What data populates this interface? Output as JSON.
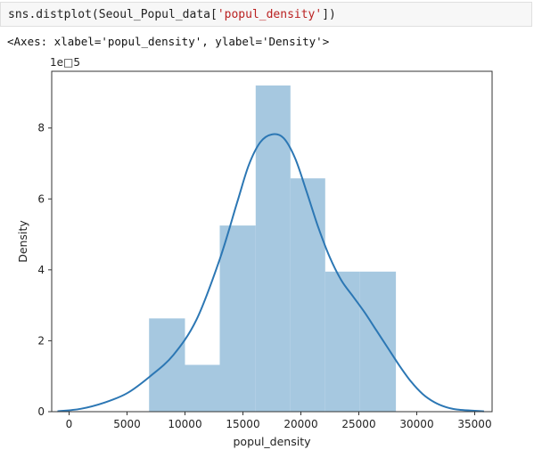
{
  "cell": {
    "code_prefix": "sns.distplot(Seoul_Popul_data[",
    "code_string": "'popul_density'",
    "code_suffix": "])"
  },
  "output": {
    "repr": "<Axes: xlabel='popul_density', ylabel='Density'>"
  },
  "chart_data": {
    "type": "bar",
    "xlabel": "popul_density",
    "ylabel": "Density",
    "y_scale_label": "1e□5",
    "xlim": [
      -1500,
      36500
    ],
    "ylim": [
      0,
      9.6
    ],
    "xticks": [
      0,
      5000,
      10000,
      15000,
      20000,
      25000,
      30000,
      35000
    ],
    "yticks": [
      0,
      2,
      4,
      6,
      8
    ],
    "histogram": {
      "bins": [
        {
          "x0": 6900,
          "x1": 10000,
          "density": 2.63
        },
        {
          "x0": 10000,
          "x1": 13000,
          "density": 1.32
        },
        {
          "x0": 13000,
          "x1": 16100,
          "density": 5.25
        },
        {
          "x0": 16100,
          "x1": 19100,
          "density": 9.2
        },
        {
          "x0": 19100,
          "x1": 22100,
          "density": 6.58
        },
        {
          "x0": 22100,
          "x1": 25100,
          "density": 3.95
        },
        {
          "x0": 25100,
          "x1": 28200,
          "density": 3.95
        }
      ],
      "color": "#a6c8e0"
    },
    "kde": {
      "color": "#2c77b4",
      "points": [
        [
          -1000,
          0.01
        ],
        [
          1000,
          0.08
        ],
        [
          3000,
          0.25
        ],
        [
          5000,
          0.52
        ],
        [
          7000,
          1.0
        ],
        [
          9000,
          1.6
        ],
        [
          11000,
          2.6
        ],
        [
          13000,
          4.3
        ],
        [
          14500,
          5.9
        ],
        [
          15500,
          6.95
        ],
        [
          16500,
          7.6
        ],
        [
          17500,
          7.82
        ],
        [
          18500,
          7.72
        ],
        [
          19500,
          7.15
        ],
        [
          20500,
          6.2
        ],
        [
          21500,
          5.2
        ],
        [
          22500,
          4.35
        ],
        [
          23500,
          3.7
        ],
        [
          24500,
          3.25
        ],
        [
          25500,
          2.8
        ],
        [
          26500,
          2.3
        ],
        [
          27500,
          1.8
        ],
        [
          28500,
          1.3
        ],
        [
          29500,
          0.85
        ],
        [
          30500,
          0.5
        ],
        [
          31500,
          0.27
        ],
        [
          32500,
          0.13
        ],
        [
          33500,
          0.06
        ],
        [
          35800,
          0.01
        ]
      ]
    }
  }
}
